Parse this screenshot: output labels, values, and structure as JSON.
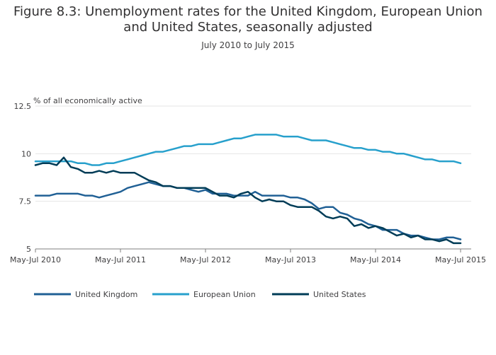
{
  "chart_data": {
    "type": "line",
    "title": "Figure 8.3: Unemployment rates for the United Kingdom, European Union\nand United States, seasonally adjusted",
    "subtitle": "July 2010 to July 2015",
    "ylabel": "% of all economically active",
    "ylim": [
      5,
      12.5
    ],
    "yticks": [
      5,
      7.5,
      10,
      12.5
    ],
    "ytick_labels": [
      "5",
      "7.5",
      "10",
      "12.5"
    ],
    "xlim": [
      0,
      61
    ],
    "x_tick_positions": [
      0,
      12,
      24,
      36,
      48,
      60
    ],
    "x_tick_labels": [
      "May-Jul 2010",
      "May-Jul 2011",
      "May-Jul 2012",
      "May-Jul 2013",
      "May-Jul 2014",
      "May-Jul 2015"
    ],
    "grid": true,
    "legend_position": "bottom-left",
    "colors": {
      "uk": "#206095",
      "eu": "#27a0cc",
      "us": "#003c57"
    },
    "series": [
      {
        "name": "United Kingdom",
        "color": "#206095",
        "values": [
          7.8,
          7.8,
          7.8,
          7.9,
          7.9,
          7.9,
          7.9,
          7.8,
          7.8,
          7.7,
          7.8,
          7.9,
          8.0,
          8.2,
          8.3,
          8.4,
          8.5,
          8.4,
          8.3,
          8.3,
          8.2,
          8.2,
          8.1,
          8.0,
          8.1,
          7.9,
          7.9,
          7.9,
          7.8,
          7.8,
          7.8,
          8.0,
          7.8,
          7.8,
          7.8,
          7.8,
          7.7,
          7.7,
          7.6,
          7.4,
          7.1,
          7.2,
          7.2,
          6.9,
          6.8,
          6.6,
          6.5,
          6.3,
          6.2,
          6.0,
          6.0,
          6.0,
          5.8,
          5.7,
          5.7,
          5.6,
          5.5,
          5.5,
          5.6,
          5.6,
          5.5
        ]
      },
      {
        "name": "European Union",
        "color": "#27a0cc",
        "values": [
          9.6,
          9.6,
          9.6,
          9.6,
          9.6,
          9.6,
          9.5,
          9.5,
          9.4,
          9.4,
          9.5,
          9.5,
          9.6,
          9.7,
          9.8,
          9.9,
          10.0,
          10.1,
          10.1,
          10.2,
          10.3,
          10.4,
          10.4,
          10.5,
          10.5,
          10.5,
          10.6,
          10.7,
          10.8,
          10.8,
          10.9,
          11.0,
          11.0,
          11.0,
          11.0,
          10.9,
          10.9,
          10.9,
          10.8,
          10.7,
          10.7,
          10.7,
          10.6,
          10.5,
          10.4,
          10.3,
          10.3,
          10.2,
          10.2,
          10.1,
          10.1,
          10.0,
          10.0,
          9.9,
          9.8,
          9.7,
          9.7,
          9.6,
          9.6,
          9.6,
          9.5
        ]
      },
      {
        "name": "United States",
        "color": "#003c57",
        "values": [
          9.4,
          9.5,
          9.5,
          9.4,
          9.8,
          9.3,
          9.2,
          9.0,
          9.0,
          9.1,
          9.0,
          9.1,
          9.0,
          9.0,
          9.0,
          8.8,
          8.6,
          8.5,
          8.3,
          8.3,
          8.2,
          8.2,
          8.2,
          8.2,
          8.2,
          8.0,
          7.8,
          7.8,
          7.7,
          7.9,
          8.0,
          7.7,
          7.5,
          7.6,
          7.5,
          7.5,
          7.3,
          7.2,
          7.2,
          7.2,
          7.0,
          6.7,
          6.6,
          6.7,
          6.6,
          6.2,
          6.3,
          6.1,
          6.2,
          6.1,
          5.9,
          5.7,
          5.8,
          5.6,
          5.7,
          5.5,
          5.5,
          5.4,
          5.5,
          5.3,
          5.3
        ]
      }
    ]
  }
}
